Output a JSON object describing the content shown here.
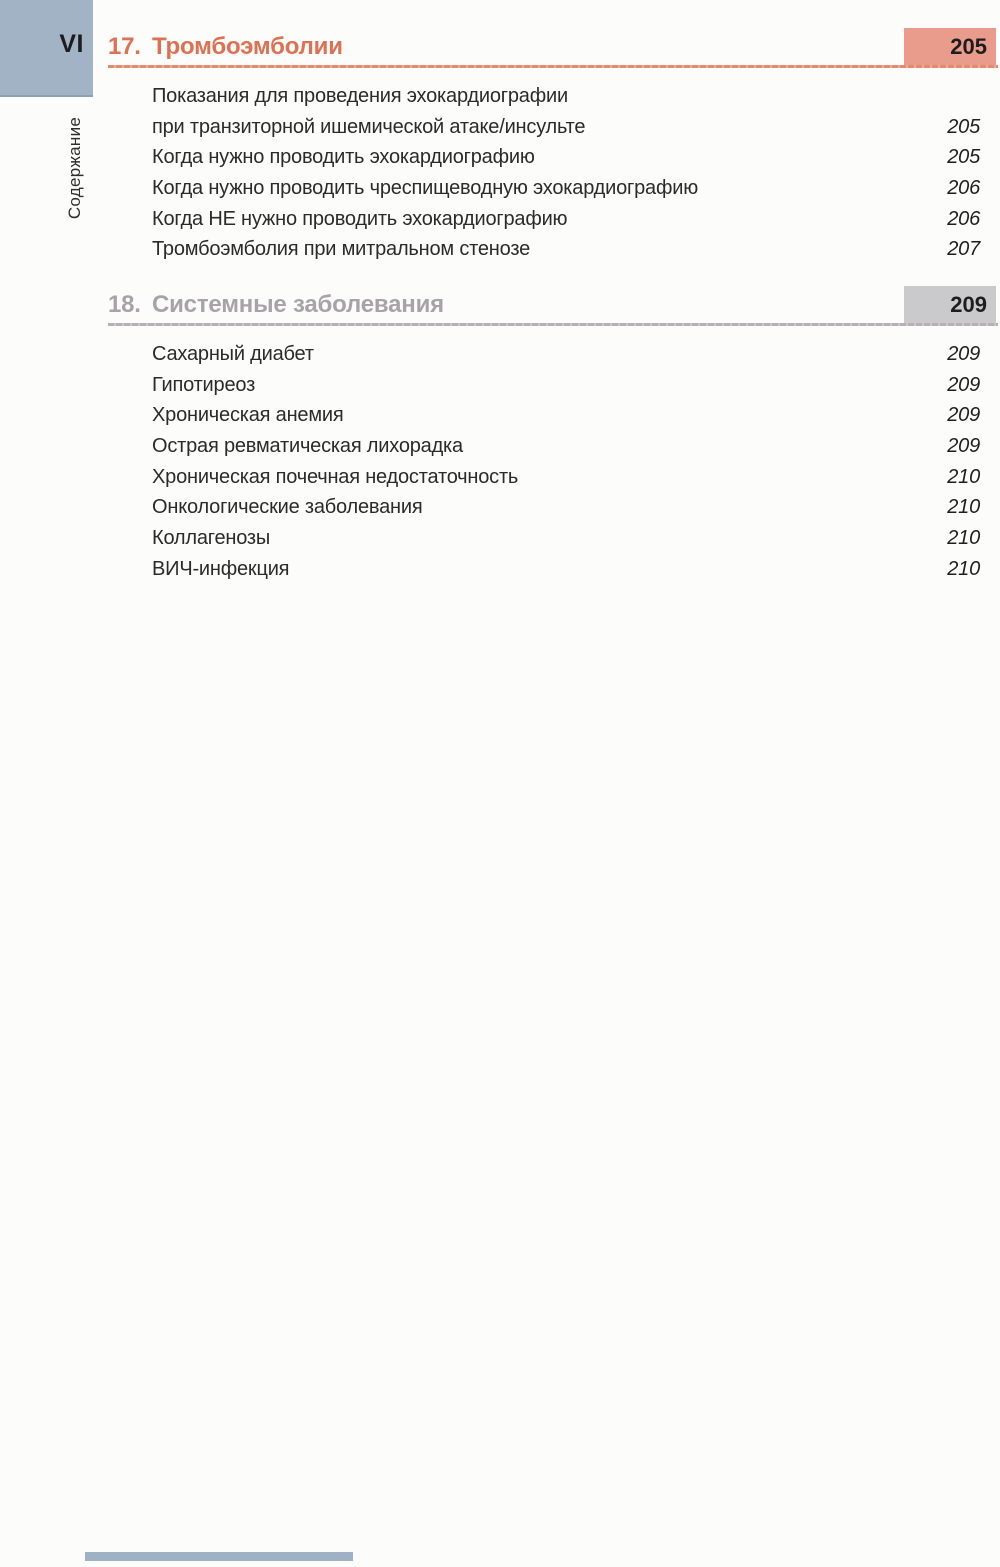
{
  "meta": {
    "page_label": "VI",
    "sidebar_label": "Содержание"
  },
  "colors": {
    "sidebar_blue": "#a2b3c6",
    "salmon_heading_text": "#dd7154",
    "salmon_badge_bg": "#e99c8b",
    "salmon_rule": "#e18b73",
    "gray_heading_text": "#a7a4a9",
    "gray_badge_bg": "#cac9cb",
    "gray_rule": "#b4b2b5",
    "body_text": "#2b2b2b"
  },
  "sections": [
    {
      "number": "17.",
      "title": "Тромбоэмболии",
      "page_badge": "205",
      "entries": [
        {
          "label": "Показания для проведения эхокардиографии",
          "page": ""
        },
        {
          "label": "при транзиторной ишемической атаке/инсульте",
          "page": "205"
        },
        {
          "label": "Когда нужно проводить эхокардиографию",
          "page": "205"
        },
        {
          "label": "Когда нужно проводить чреспищеводную эхокардиографию",
          "page": "206"
        },
        {
          "label": "Когда НЕ нужно проводить эхокардиографию",
          "page": "206"
        },
        {
          "label": "Тромбоэмболия при митральном стенозе",
          "page": "207"
        }
      ]
    },
    {
      "number": "18.",
      "title": "Системные заболевания",
      "page_badge": "209",
      "entries": [
        {
          "label": "Сахарный диабет",
          "page": "209"
        },
        {
          "label": "Гипотиреоз",
          "page": "209"
        },
        {
          "label": "Хроническая анемия",
          "page": "209"
        },
        {
          "label": "Острая ревматическая лихорадка",
          "page": "209"
        },
        {
          "label": "Хроническая почечная недостаточность",
          "page": "210"
        },
        {
          "label": "Онкологические заболевания",
          "page": "210"
        },
        {
          "label": "Коллагенозы",
          "page": "210"
        },
        {
          "label": "ВИЧ-инфекция",
          "page": "210"
        }
      ]
    }
  ]
}
